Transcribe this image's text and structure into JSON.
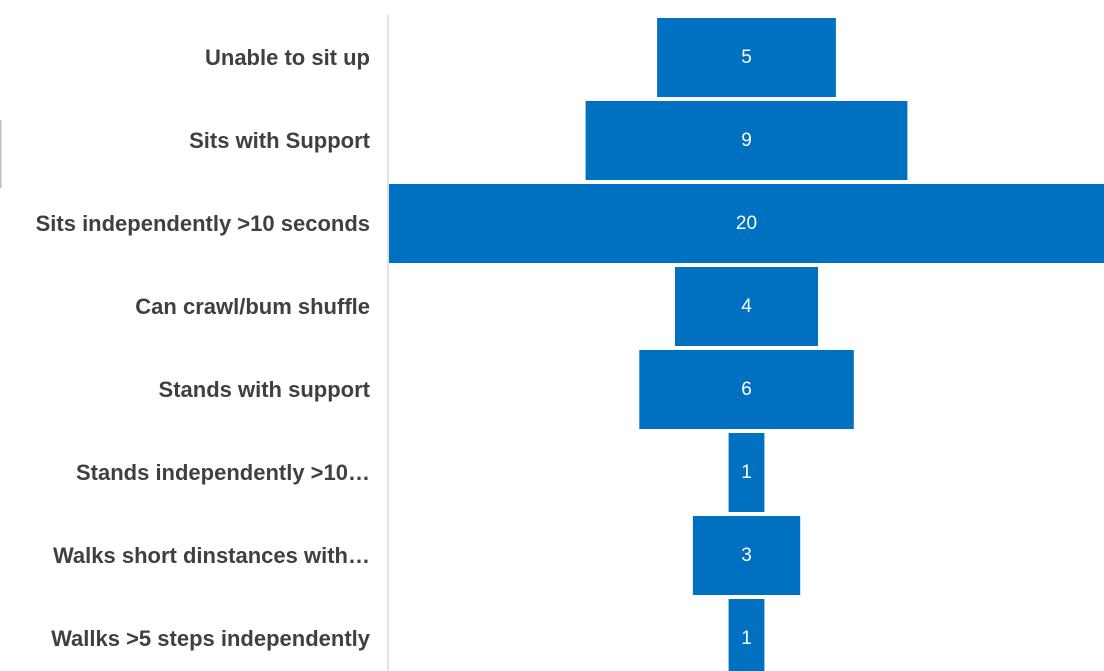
{
  "chart_data": {
    "type": "bar",
    "orientation": "horizontal",
    "style": "funnel",
    "categories": [
      "Unable to sit up",
      "Sits with Support",
      "Sits independently >10 seconds",
      "Can crawl/bum shuffle",
      "Stands with support",
      "Stands independently >10…",
      "Walks short dinstances with…",
      "Wallks >5 steps independently"
    ],
    "values": [
      5,
      9,
      20,
      4,
      6,
      1,
      3,
      1
    ],
    "data_labels": [
      "5",
      "9",
      "20",
      "4",
      "6",
      "1",
      "3",
      "1"
    ],
    "bar_color": "#0070C0",
    "title": "",
    "xlabel": "",
    "ylabel": "",
    "xlim": [
      0,
      20
    ],
    "grid": false,
    "legend": "none"
  }
}
